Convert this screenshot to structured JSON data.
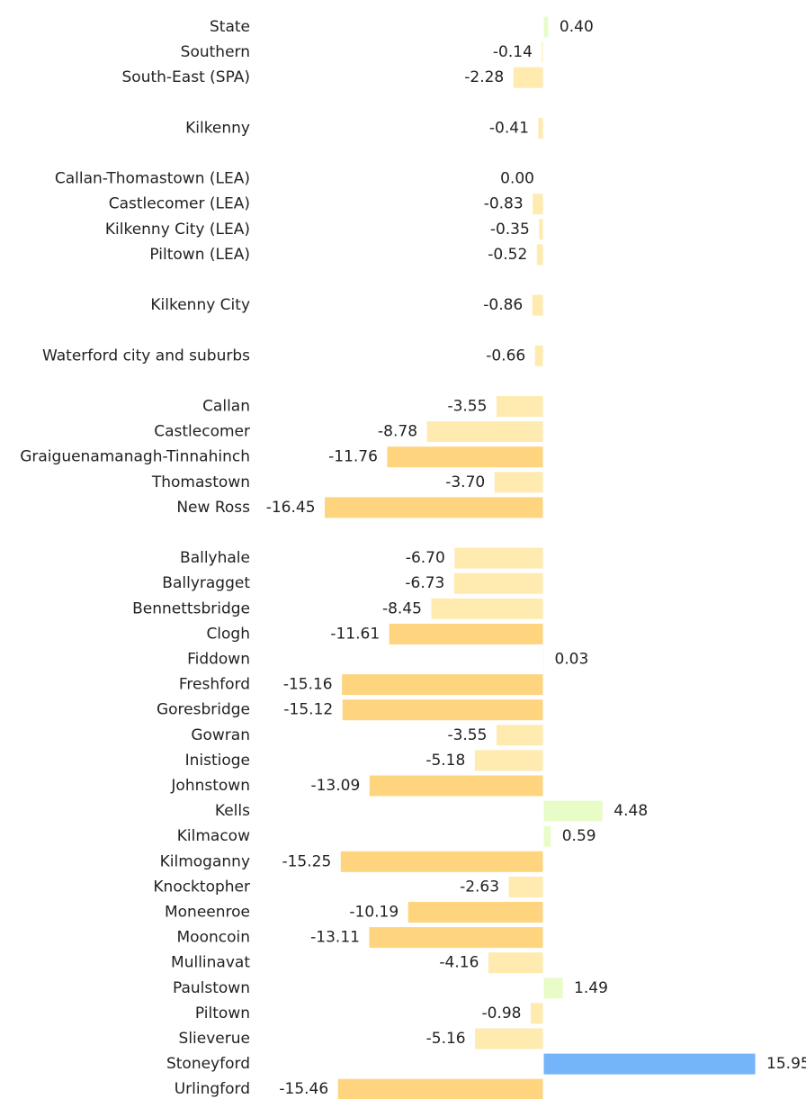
{
  "chart_data": {
    "type": "bar",
    "orientation": "horizontal",
    "title": "",
    "xlabel": "",
    "ylabel": "",
    "grid": false,
    "legend": "none",
    "xlim": [
      -16.45,
      15.95
    ],
    "categories": [
      "State",
      "Southern",
      "South-East (SPA)",
      "Kilkenny",
      "Callan-Thomastown (LEA)",
      "Castlecomer (LEA)",
      "Kilkenny City (LEA)",
      "Piltown (LEA)",
      "Kilkenny City",
      "Waterford city and suburbs",
      "Callan",
      "Castlecomer",
      "Graiguenamanagh-Tinnahinch",
      "Thomastown",
      "New Ross",
      "Ballyhale",
      "Ballyragget",
      "Bennettsbridge",
      "Clogh",
      "Fiddown",
      "Freshford",
      "Goresbridge",
      "Gowran",
      "Inistioge",
      "Johnstown",
      "Kells",
      "Kilmacow",
      "Kilmoganny",
      "Knocktopher",
      "Moneenroe",
      "Mooncoin",
      "Mullinavat",
      "Paulstown",
      "Piltown",
      "Slieverue",
      "Stoneyford",
      "Urlingford"
    ],
    "values": [
      0.4,
      -0.14,
      -2.28,
      -0.41,
      0.0,
      -0.83,
      -0.35,
      -0.52,
      -0.86,
      -0.66,
      -3.55,
      -8.78,
      -11.76,
      -3.7,
      -16.45,
      -6.7,
      -6.73,
      -8.45,
      -11.61,
      0.03,
      -15.16,
      -15.12,
      -3.55,
      -5.18,
      -13.09,
      4.48,
      0.59,
      -15.25,
      -2.63,
      -10.19,
      -13.11,
      -4.16,
      1.49,
      -0.98,
      -5.16,
      15.95,
      -15.46
    ],
    "value_labels": [
      "0.40",
      "-0.14",
      "-2.28",
      "-0.41",
      "0.00",
      "-0.83",
      "-0.35",
      "-0.52",
      "-0.86",
      "-0.66",
      "-3.55",
      "-8.78",
      "-11.76",
      "-3.70",
      "-16.45",
      "-6.70",
      "-6.73",
      "-8.45",
      "-11.61",
      "0.03",
      "-15.16",
      "-15.12",
      "-3.55",
      "-5.18",
      "-13.09",
      "4.48",
      "0.59",
      "-15.25",
      "-2.63",
      "-10.19",
      "-13.11",
      "-4.16",
      "1.49",
      "-0.98",
      "-5.16",
      "15.95",
      "-15.46"
    ],
    "colors": {
      "large_decline": "#ffd47f",
      "small_decline": "#ffeaaf",
      "small_increase": "#e8fcc8",
      "large_increase": "#74b4f9",
      "text": "#222222"
    },
    "color_classes": [
      "small_increase",
      "small_decline",
      "small_decline",
      "small_decline",
      "small_decline",
      "small_decline",
      "small_decline",
      "small_decline",
      "small_decline",
      "small_decline",
      "small_decline",
      "small_decline",
      "large_decline",
      "small_decline",
      "large_decline",
      "small_decline",
      "small_decline",
      "small_decline",
      "large_decline",
      "small_increase",
      "large_decline",
      "large_decline",
      "small_decline",
      "small_decline",
      "large_decline",
      "small_increase",
      "small_increase",
      "large_decline",
      "small_decline",
      "large_decline",
      "large_decline",
      "small_decline",
      "small_increase",
      "small_decline",
      "small_decline",
      "large_increase",
      "large_decline"
    ]
  }
}
